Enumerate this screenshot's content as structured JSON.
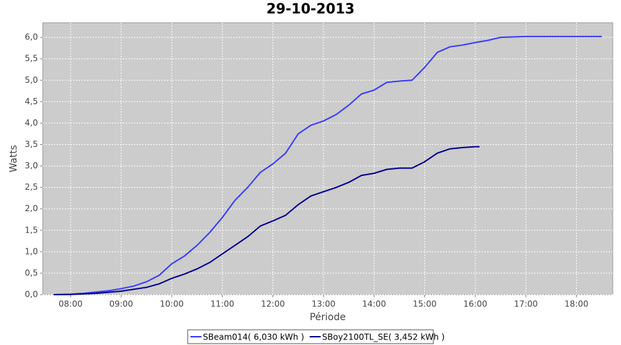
{
  "chart_data": {
    "type": "line",
    "title": "29-10-2013",
    "x_label": "Période",
    "y_label": "Watts",
    "xlim": [
      "07:27",
      "18:43"
    ],
    "xticks": [
      "08:00",
      "09:00",
      "10:00",
      "11:00",
      "12:00",
      "13:00",
      "14:00",
      "15:00",
      "16:00",
      "17:00",
      "18:00"
    ],
    "ylim": [
      0,
      6.34
    ],
    "yticks": [
      {
        "value": 0,
        "label": "0,0"
      },
      {
        "value": 0.5,
        "label": "0,5"
      },
      {
        "value": 1,
        "label": "1,0"
      },
      {
        "value": 1.5,
        "label": "1,5"
      },
      {
        "value": 2,
        "label": "2,0"
      },
      {
        "value": 2.5,
        "label": "2,5"
      },
      {
        "value": 3,
        "label": "3,0"
      },
      {
        "value": 3.5,
        "label": "3,5"
      },
      {
        "value": 4,
        "label": "4,0"
      },
      {
        "value": 4.5,
        "label": "4,5"
      },
      {
        "value": 5,
        "label": "5,0"
      },
      {
        "value": 5.5,
        "label": "5,5"
      },
      {
        "value": 6,
        "label": "6,0"
      }
    ],
    "grid": true,
    "series": [
      {
        "name": "SBeam014( 6,030 kWh )",
        "color": "#3a3aff",
        "x": [
          "07:40",
          "08:00",
          "08:15",
          "08:30",
          "08:45",
          "09:00",
          "09:15",
          "09:30",
          "09:45",
          "10:00",
          "10:15",
          "10:30",
          "10:45",
          "11:00",
          "11:15",
          "11:30",
          "11:45",
          "12:00",
          "12:15",
          "12:30",
          "12:45",
          "13:00",
          "13:15",
          "13:30",
          "13:45",
          "14:00",
          "14:15",
          "14:30",
          "14:45",
          "15:00",
          "15:15",
          "15:30",
          "15:45",
          "16:00",
          "16:15",
          "16:30",
          "17:00",
          "17:30",
          "18:00",
          "18:30"
        ],
        "values": [
          0,
          0.01,
          0.03,
          0.06,
          0.09,
          0.14,
          0.2,
          0.3,
          0.45,
          0.72,
          0.9,
          1.15,
          1.45,
          1.8,
          2.2,
          2.5,
          2.85,
          3.05,
          3.3,
          3.75,
          3.95,
          4.05,
          4.2,
          4.42,
          4.68,
          4.77,
          4.95,
          4.98,
          5.0,
          5.3,
          5.65,
          5.78,
          5.82,
          5.88,
          5.93,
          6.0,
          6.02,
          6.02,
          6.02,
          6.02
        ]
      },
      {
        "name": "SBoy2100TL_SE( 3,452 kWh )",
        "color": "#00008c",
        "x": [
          "07:40",
          "08:00",
          "08:30",
          "09:00",
          "09:30",
          "09:45",
          "10:00",
          "10:15",
          "10:30",
          "10:45",
          "11:00",
          "11:15",
          "11:30",
          "11:45",
          "12:00",
          "12:15",
          "12:30",
          "12:45",
          "13:00",
          "13:15",
          "13:30",
          "13:45",
          "14:00",
          "14:15",
          "14:30",
          "14:45",
          "15:00",
          "15:15",
          "15:30",
          "15:45",
          "16:00",
          "16:05"
        ],
        "values": [
          0,
          0.005,
          0.03,
          0.08,
          0.17,
          0.25,
          0.38,
          0.48,
          0.6,
          0.75,
          0.95,
          1.15,
          1.35,
          1.6,
          1.72,
          1.85,
          2.1,
          2.3,
          2.4,
          2.5,
          2.62,
          2.78,
          2.83,
          2.92,
          2.95,
          2.95,
          3.1,
          3.3,
          3.4,
          3.43,
          3.45,
          3.45
        ]
      }
    ]
  }
}
